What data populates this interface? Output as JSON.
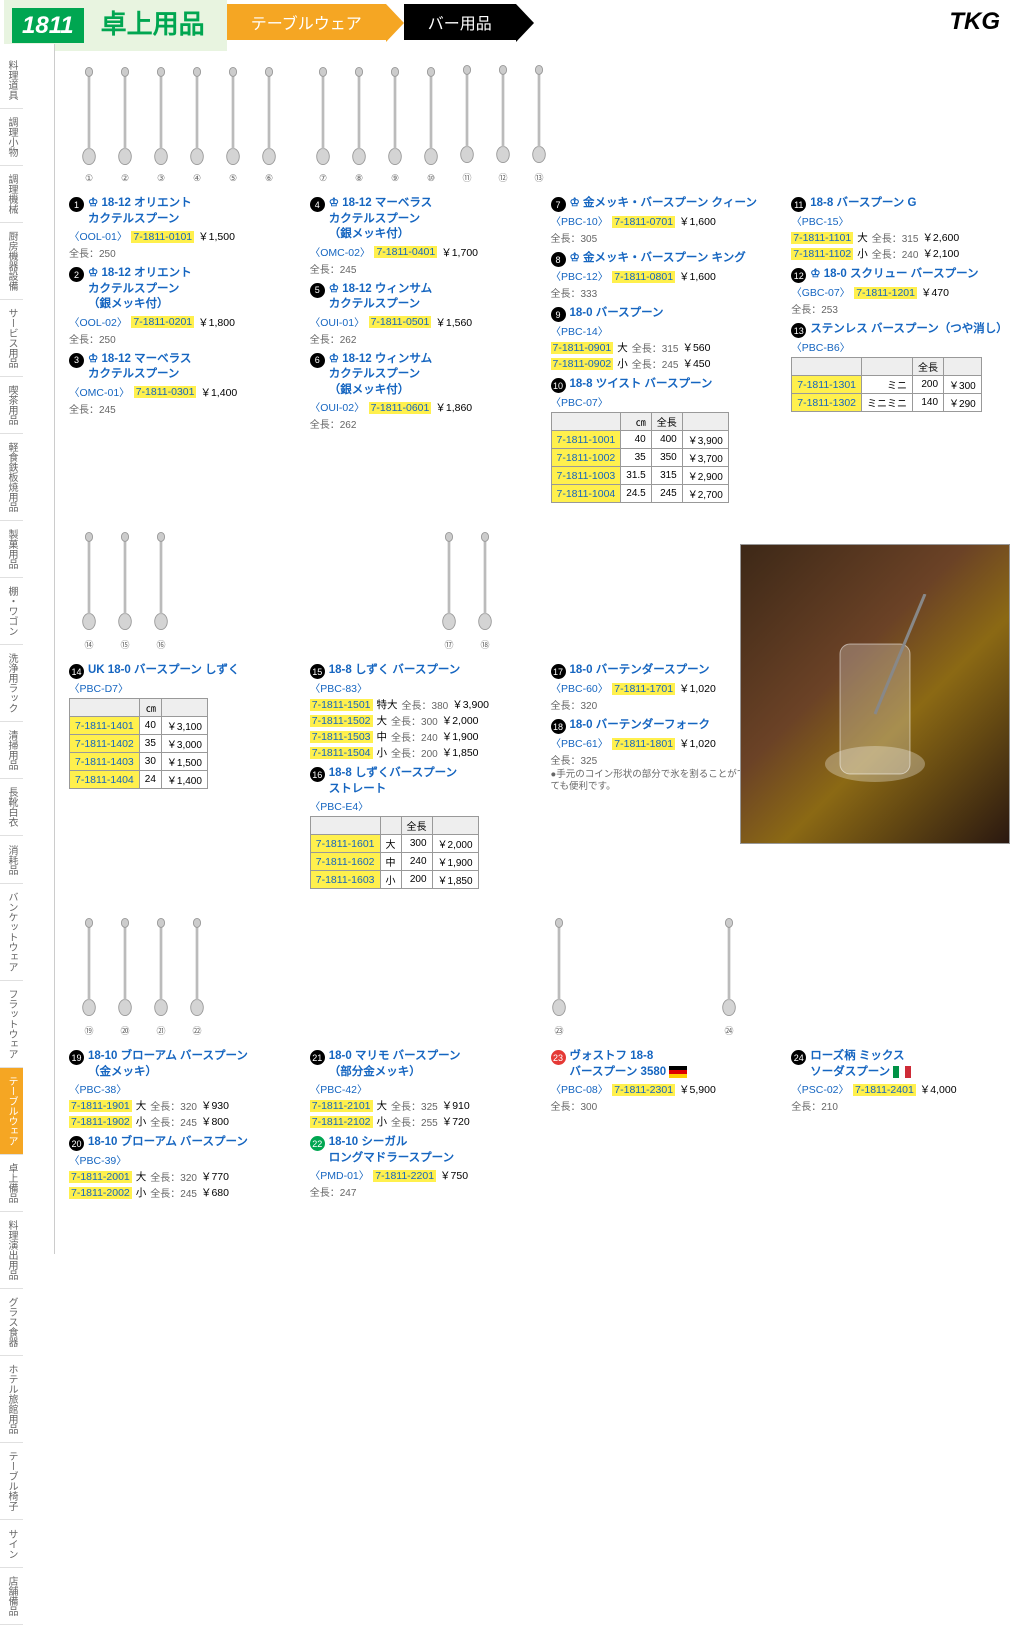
{
  "header": {
    "page_num": "1811",
    "category": "卓上用品",
    "bc1": "テーブルウェア",
    "bc2": "バー用品",
    "brand": "TKG"
  },
  "sidebar": [
    "料理道具",
    "調理小物",
    "調理機械",
    "厨房機器設備",
    "サービス用品",
    "喫茶用品",
    "軽食鉄板焼用品",
    "製菓用品",
    "棚・ワゴン",
    "洗浄用ラック",
    "清掃用品",
    "長靴白衣",
    "消耗品",
    "バンケットウェア",
    "フラットウェア",
    "テーブルウェア",
    "卓上備品",
    "料理演出用品",
    "グラス食器",
    "ホテル旅館用品",
    "テーブル椅子",
    "サイン",
    "店舗備品"
  ],
  "sidebar_highlight_index": 15,
  "sections": {
    "s1": {
      "title": "18-12 オリエント\nカクテルスプーン",
      "code": "〈OOL-01〉",
      "sku": "7-1811-0101",
      "price": "￥1,500",
      "meta": "全長：250"
    },
    "s2": {
      "title": "18-12 オリエント\nカクテルスプーン\n（銀メッキ付）",
      "code": "〈OOL-02〉",
      "sku": "7-1811-0201",
      "price": "￥1,800",
      "meta": "全長：250"
    },
    "s3": {
      "title": "18-12 マーベラス\nカクテルスプーン",
      "code": "〈OMC-01〉",
      "sku": "7-1811-0301",
      "price": "￥1,400",
      "meta": "全長：245"
    },
    "s4": {
      "title": "18-12 マーベラス\nカクテルスプーン\n（銀メッキ付）",
      "code": "〈OMC-02〉",
      "sku": "7-1811-0401",
      "price": "￥1,700",
      "meta": "全長：245"
    },
    "s5": {
      "title": "18-12 ウィンサム\nカクテルスプーン",
      "code": "〈OUI-01〉",
      "sku": "7-1811-0501",
      "price": "￥1,560",
      "meta": "全長：262"
    },
    "s6": {
      "title": "18-12 ウィンサム\nカクテルスプーン\n（銀メッキ付）",
      "code": "〈OUI-02〉",
      "sku": "7-1811-0601",
      "price": "￥1,860",
      "meta": "全長：262"
    },
    "s7": {
      "title": "金メッキ・バースプーン クィーン",
      "code": "〈PBC-10〉",
      "sku": "7-1811-0701",
      "price": "￥1,600",
      "meta": "全長：305"
    },
    "s8": {
      "title": "金メッキ・バースプーン キング",
      "code": "〈PBC-12〉",
      "sku": "7-1811-0801",
      "price": "￥1,600",
      "meta": "全長：333"
    },
    "s9": {
      "title": "18-0 バースプーン",
      "code": "〈PBC-14〉",
      "rows": [
        {
          "sku": "7-1811-0901",
          "size": "大",
          "len": "全長：315",
          "price": "￥560"
        },
        {
          "sku": "7-1811-0902",
          "size": "小",
          "len": "全長：245",
          "price": "￥450"
        }
      ]
    },
    "s10": {
      "title": "18-8 ツイスト バースプーン",
      "code": "〈PBC-07〉",
      "th": [
        "㎝",
        "全長",
        ""
      ],
      "rows": [
        {
          "sku": "7-1811-1001",
          "cm": "40",
          "len": "400",
          "price": "￥3,900"
        },
        {
          "sku": "7-1811-1002",
          "cm": "35",
          "len": "350",
          "price": "￥3,700"
        },
        {
          "sku": "7-1811-1003",
          "cm": "31.5",
          "len": "315",
          "price": "￥2,900"
        },
        {
          "sku": "7-1811-1004",
          "cm": "24.5",
          "len": "245",
          "price": "￥2,700"
        }
      ]
    },
    "s11": {
      "title": "18-8 バースプーン G",
      "code": "〈PBC-15〉",
      "rows": [
        {
          "sku": "7-1811-1101",
          "size": "大",
          "len": "全長：315",
          "price": "￥2,600"
        },
        {
          "sku": "7-1811-1102",
          "size": "小",
          "len": "全長：240",
          "price": "￥2,100"
        }
      ]
    },
    "s12": {
      "title": "18-0 スクリュー バースプーン",
      "code": "〈GBC-07〉",
      "sku": "7-1811-1201",
      "price": "￥470",
      "meta": "全長：253"
    },
    "s13": {
      "title": "ステンレス バースプーン（つや消し）",
      "code": "〈PBC-B6〉",
      "th": [
        "",
        "全長",
        ""
      ],
      "rows": [
        {
          "sku": "7-1811-1301",
          "size": "ミニ",
          "len": "200",
          "price": "￥300"
        },
        {
          "sku": "7-1811-1302",
          "size": "ミニミニ",
          "len": "140",
          "price": "￥290"
        }
      ]
    },
    "s14": {
      "title": "UK 18-0 バースプーン しずく",
      "code": "〈PBC-D7〉",
      "th": [
        "㎝",
        ""
      ],
      "rows": [
        {
          "sku": "7-1811-1401",
          "cm": "40",
          "price": "￥3,100"
        },
        {
          "sku": "7-1811-1402",
          "cm": "35",
          "price": "￥3,000"
        },
        {
          "sku": "7-1811-1403",
          "cm": "30",
          "price": "￥1,500"
        },
        {
          "sku": "7-1811-1404",
          "cm": "24",
          "price": "￥1,400"
        }
      ]
    },
    "s15": {
      "title": "18-8 しずく バースプーン",
      "code": "〈PBC-83〉",
      "rows": [
        {
          "sku": "7-1811-1501",
          "size": "特大",
          "len": "全長：380",
          "price": "￥3,900"
        },
        {
          "sku": "7-1811-1502",
          "size": "大",
          "len": "全長：300",
          "price": "￥2,000"
        },
        {
          "sku": "7-1811-1503",
          "size": "中",
          "len": "全長：240",
          "price": "￥1,900"
        },
        {
          "sku": "7-1811-1504",
          "size": "小",
          "len": "全長：200",
          "price": "￥1,850"
        }
      ]
    },
    "s16": {
      "title": "18-8 しずくバースプーン\nストレート",
      "code": "〈PBC-E4〉",
      "th": [
        "",
        "全長",
        ""
      ],
      "rows": [
        {
          "sku": "7-1811-1601",
          "size": "大",
          "len": "300",
          "price": "￥2,000"
        },
        {
          "sku": "7-1811-1602",
          "size": "中",
          "len": "240",
          "price": "￥1,900"
        },
        {
          "sku": "7-1811-1603",
          "size": "小",
          "len": "200",
          "price": "￥1,850"
        }
      ]
    },
    "s17": {
      "title": "18-0 バーテンダースプーン",
      "code": "〈PBC-60〉",
      "sku": "7-1811-1701",
      "price": "￥1,020",
      "meta": "全長：320"
    },
    "s18": {
      "title": "18-0 バーテンダーフォーク",
      "code": "〈PBC-61〉",
      "sku": "7-1811-1801",
      "price": "￥1,020",
      "meta": "全長：325",
      "note": "●手元のコイン形状の部分で氷を割ることができ、とても便利です。"
    },
    "s19": {
      "title": "18-10 ブローアム バースプーン\n（金メッキ）",
      "code": "〈PBC-38〉",
      "rows": [
        {
          "sku": "7-1811-1901",
          "size": "大",
          "len": "全長：320",
          "price": "￥930"
        },
        {
          "sku": "7-1811-1902",
          "size": "小",
          "len": "全長：245",
          "price": "￥800"
        }
      ]
    },
    "s20": {
      "title": "18-10 ブローアム バースプーン",
      "code": "〈PBC-39〉",
      "rows": [
        {
          "sku": "7-1811-2001",
          "size": "大",
          "len": "全長：320",
          "price": "￥770"
        },
        {
          "sku": "7-1811-2002",
          "size": "小",
          "len": "全長：245",
          "price": "￥680"
        }
      ]
    },
    "s21": {
      "title": "18-0 マリモ バースプーン\n（部分金メッキ）",
      "code": "〈PBC-42〉",
      "rows": [
        {
          "sku": "7-1811-2101",
          "size": "大",
          "len": "全長：325",
          "price": "￥910"
        },
        {
          "sku": "7-1811-2102",
          "size": "小",
          "len": "全長：255",
          "price": "￥720"
        }
      ]
    },
    "s22": {
      "title": "18-10 シーガル\nロングマドラースプーン",
      "code": "〈PMD-01〉",
      "sku": "7-1811-2201",
      "price": "￥750",
      "meta": "全長：247"
    },
    "s23": {
      "title": "ヴォストフ 18-8\nバースプーン 3580",
      "code": "〈PBC-08〉",
      "sku": "7-1811-2301",
      "price": "￥5,900",
      "meta": "全長：300",
      "flag": "de"
    },
    "s24": {
      "title": "ローズ柄 ミックス\nソーダスプーン",
      "code": "〈PSC-02〉",
      "sku": "7-1811-2401",
      "price": "￥4,000",
      "meta": "全長：210",
      "flag": "it"
    }
  },
  "spoon_rows": {
    "row1a": [
      "①",
      "②",
      "③",
      "④",
      "⑤",
      "⑥"
    ],
    "row1b": [
      "⑦",
      "⑧",
      "⑨",
      "⑩",
      "⑪",
      "⑫",
      "⑬"
    ],
    "row2a": [
      "⑭",
      "⑮",
      "⑯"
    ],
    "row2b": [
      "⑰",
      "⑱"
    ],
    "row3a": [
      "⑲",
      "⑳",
      "㉑",
      "㉒"
    ],
    "row3b": [
      "㉓"
    ],
    "row3c": [
      "㉔"
    ]
  }
}
